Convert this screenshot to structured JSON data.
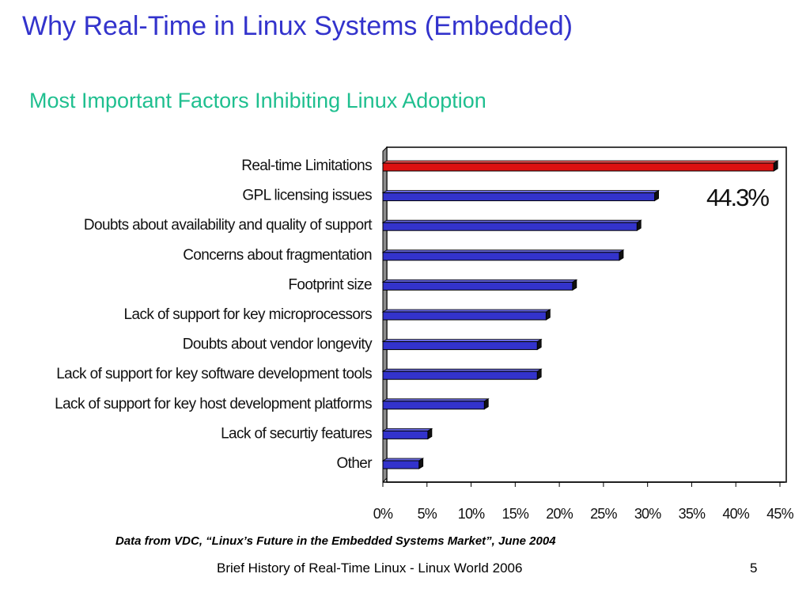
{
  "slide": {
    "title": "Why Real-Time in Linux Systems (Embedded)",
    "source_note": "Data from VDC, “Linux’s Future in the Embedded Systems Market”, June 2004",
    "footer": "Brief History of Real-Time Linux - Linux World 2006",
    "page_number": "5"
  },
  "chart_data": {
    "type": "bar",
    "orientation": "horizontal",
    "title": "Most Important Factors Inhibiting Linux Adoption",
    "categories": [
      "Real-time Limitations",
      "GPL licensing issues",
      "Doubts about availability and quality of support",
      "Concerns about fragmentation",
      "Footprint size",
      "Lack of support for key microprocessors",
      "Doubts about vendor longevity",
      "Lack of support for key software development tools",
      "Lack of support for key host development platforms",
      "Lack of securtiy features",
      "Other"
    ],
    "values": [
      44.3,
      30.8,
      28.8,
      26.8,
      21.5,
      18.5,
      17.5,
      17.5,
      11.5,
      5.1,
      4.1
    ],
    "xlim": [
      0,
      45
    ],
    "xticks": [
      "0%",
      "5%",
      "10%",
      "15%",
      "20%",
      "25%",
      "30%",
      "35%",
      "40%",
      "45%"
    ],
    "annotation": "44.3%",
    "grid": false,
    "legend": "none",
    "colors": {
      "highlight": "#dd1111",
      "bar": "#3333cc",
      "bar_shadow": "#1a1a66",
      "axis_wall": "#8c8c8c"
    }
  }
}
